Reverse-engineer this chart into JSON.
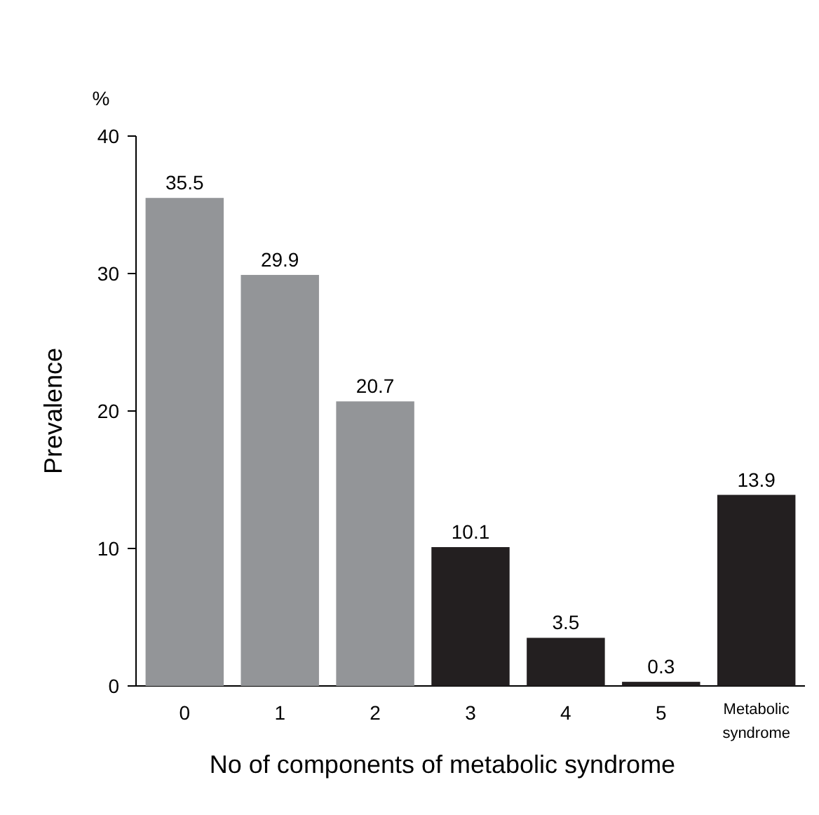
{
  "chart_data": {
    "type": "bar",
    "ylabel": "Prevalence",
    "xlabel": "No of components of metabolic syndrome",
    "annotations": [
      "%"
    ],
    "categories": [
      "0",
      "1",
      "2",
      "3",
      "4",
      "5",
      "Metabolic syndrome"
    ],
    "values": [
      35.5,
      29.9,
      20.7,
      10.1,
      3.5,
      0.3,
      13.9
    ],
    "colors": [
      "#939598",
      "#939598",
      "#939598",
      "#231f20",
      "#231f20",
      "#231f20",
      "#231f20"
    ],
    "ylim": [
      0,
      40
    ],
    "yticks": [
      0,
      10,
      20,
      30,
      40
    ],
    "data_labels": true
  }
}
